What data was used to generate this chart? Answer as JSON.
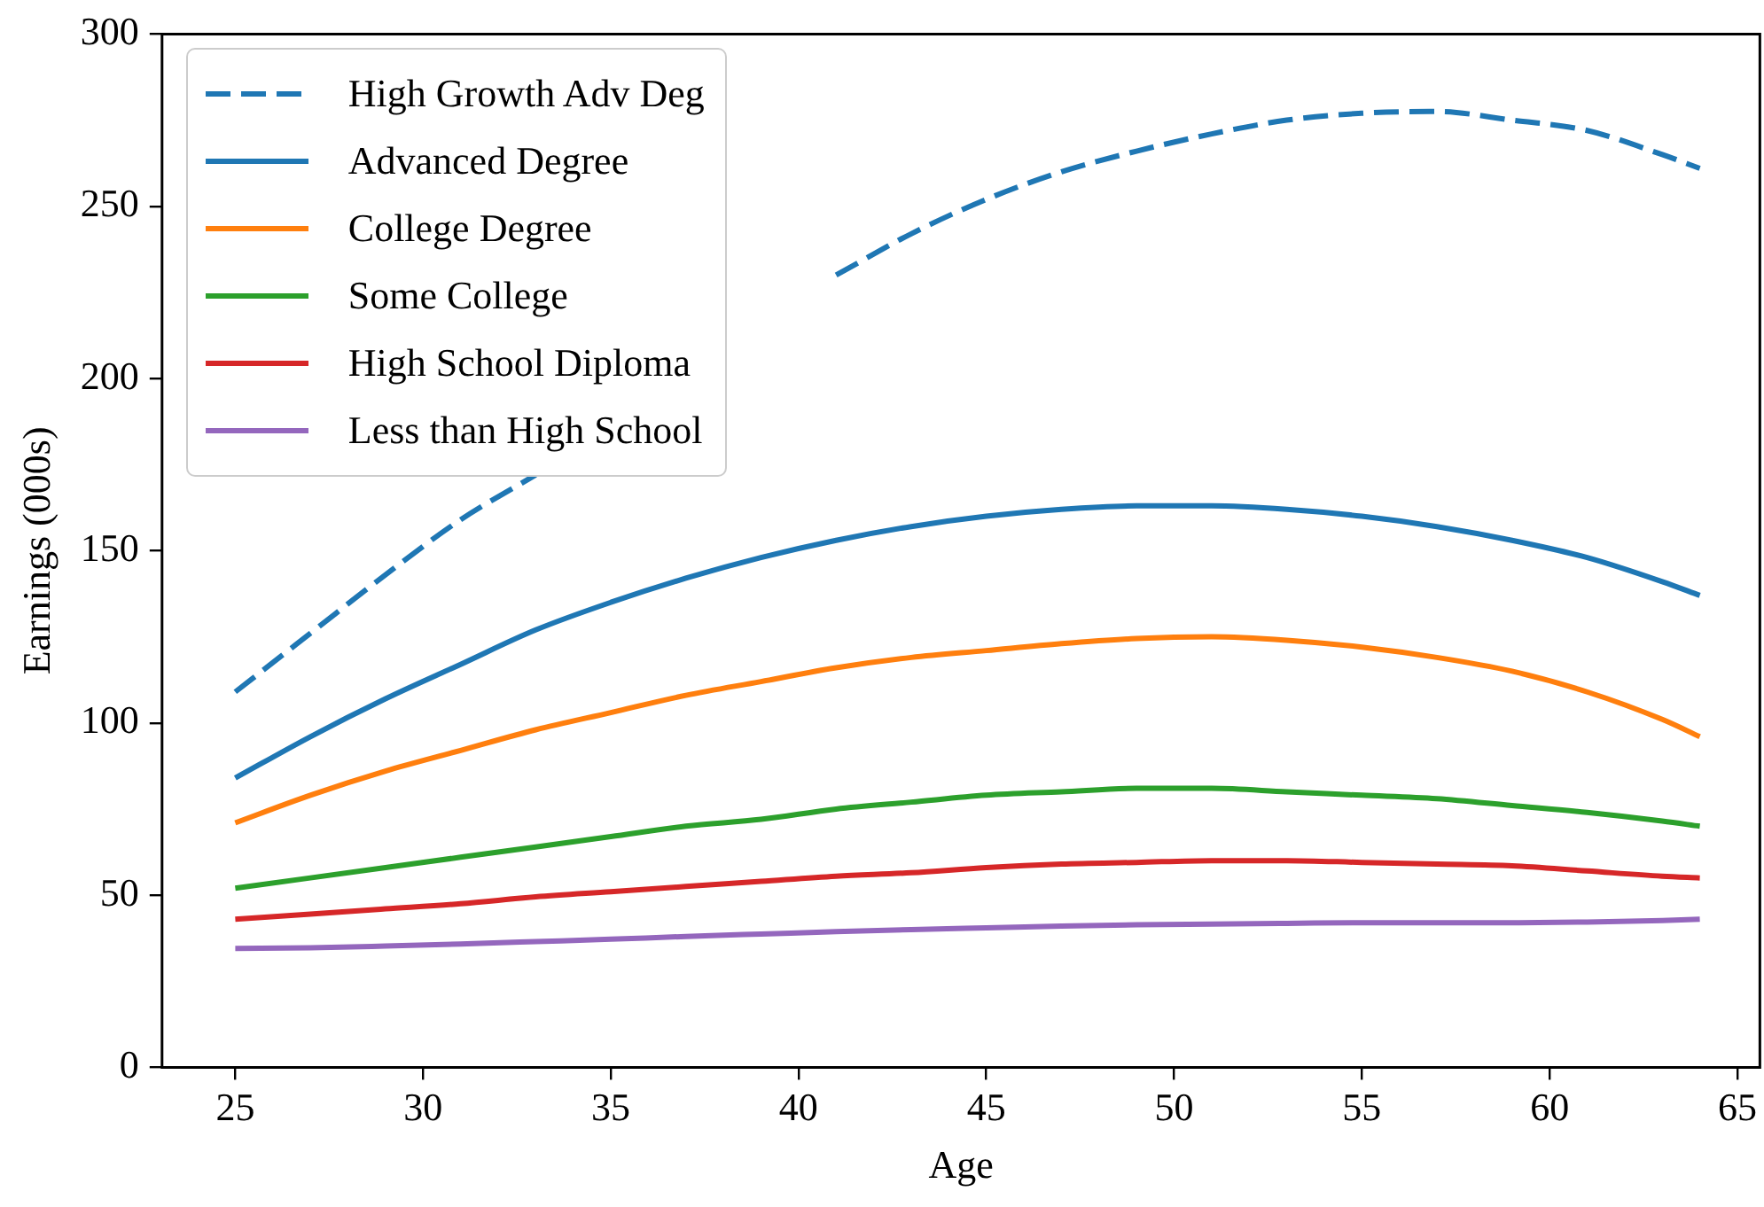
{
  "chart_data": {
    "type": "line",
    "xlabel": "Age",
    "ylabel": "Earnings (000s)",
    "x": [
      25,
      27,
      29,
      31,
      33,
      35,
      37,
      39,
      41,
      43,
      45,
      47,
      49,
      51,
      53,
      55,
      57,
      59,
      61,
      63,
      64
    ],
    "series": [
      {
        "name": "High Growth Adv Deg",
        "color": "#1f77b4",
        "line_style": "dashed",
        "values": [
          109,
          126,
          143,
          159,
          172,
          null,
          null,
          null,
          230,
          242,
          252,
          260,
          266,
          271,
          275,
          277,
          277.5,
          275,
          272,
          265,
          261
        ]
      },
      {
        "name": "Advanced Degree",
        "color": "#1f77b4",
        "values": [
          84,
          96,
          107,
          117,
          127,
          135,
          142,
          148,
          153,
          157,
          160,
          162,
          163,
          163,
          162,
          160,
          157,
          153,
          148,
          141,
          137
        ]
      },
      {
        "name": "College Degree",
        "color": "#ff7f0e",
        "values": [
          71,
          79,
          86,
          92,
          98,
          103,
          108,
          112,
          116,
          119,
          121,
          123,
          124.5,
          125,
          124,
          122,
          119,
          115,
          109,
          101,
          96
        ]
      },
      {
        "name": "Some College",
        "color": "#2ca02c",
        "values": [
          52,
          55,
          58,
          61,
          64,
          67,
          70,
          72,
          75,
          77,
          79,
          80,
          81,
          81,
          80,
          79,
          78,
          76,
          74,
          71.5,
          70
        ]
      },
      {
        "name": "High School Diploma",
        "color": "#d62728",
        "values": [
          43,
          44.5,
          46,
          47.5,
          49.5,
          51,
          52.5,
          54,
          55.5,
          56.5,
          58,
          59,
          59.5,
          60,
          60,
          59.5,
          59,
          58.5,
          57,
          55.5,
          55
        ]
      },
      {
        "name": "Less than High School",
        "color": "#9467bd",
        "values": [
          34.5,
          34.7,
          35.2,
          35.8,
          36.5,
          37.2,
          38,
          38.7,
          39.4,
          40,
          40.5,
          41,
          41.4,
          41.6,
          41.8,
          42,
          42,
          42,
          42.2,
          42.6,
          43
        ]
      }
    ],
    "xlim": [
      23.05,
      65.6
    ],
    "ylim": [
      0,
      300
    ],
    "xticks": [
      25,
      30,
      35,
      40,
      45,
      50,
      55,
      60,
      65
    ],
    "yticks": [
      0,
      50,
      100,
      150,
      200,
      250,
      300
    ],
    "grid": false,
    "legend": "top left",
    "line_style": "solid",
    "marker": "none"
  }
}
